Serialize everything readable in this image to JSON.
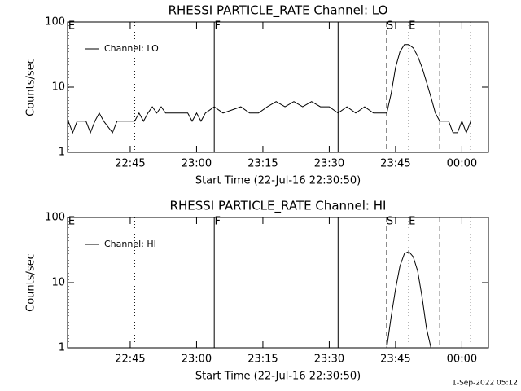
{
  "chart_data": [
    {
      "type": "line",
      "title": "RHESSI PARTICLE_RATE Channel: LO",
      "x_label": "Start Time (22-Jul-16 22:30:50)",
      "y_label": "Counts/sec",
      "log_scale": true,
      "ylim": [
        1,
        100
      ],
      "yticks": [
        1,
        10,
        100
      ],
      "xlim": [
        "22:30:50",
        "00:06"
      ],
      "xticks": [
        "22:45",
        "23:00",
        "23:15",
        "23:30",
        "23:45",
        "00:00"
      ],
      "x": [
        "22:31",
        "22:32",
        "22:33",
        "22:35",
        "22:36",
        "22:37",
        "22:38",
        "22:39",
        "22:41",
        "22:42",
        "22:46",
        "22:47",
        "22:48",
        "22:49",
        "22:50",
        "22:51",
        "22:52",
        "22:53",
        "22:58",
        "22:59",
        "23:00",
        "23:01",
        "23:02",
        "23:04",
        "23:06",
        "23:10",
        "23:12",
        "23:14",
        "23:16",
        "23:18",
        "23:20",
        "23:22",
        "23:24",
        "23:26",
        "23:28",
        "23:30",
        "23:32",
        "23:34",
        "23:36",
        "23:38",
        "23:40",
        "23:43",
        "23:44",
        "23:45",
        "23:46",
        "23:47",
        "23:48",
        "23:49",
        "23:50",
        "23:51",
        "23:52",
        "23:53",
        "23:54",
        "23:55",
        "23:56",
        "23:57",
        "23:58",
        "23:59",
        "00:00",
        "00:01",
        "00:02"
      ],
      "series": [
        {
          "name": "Channel: LO",
          "color": "#000000",
          "values": [
            3,
            2,
            3,
            3,
            2,
            3,
            4,
            3,
            2,
            3,
            3,
            4,
            3,
            4,
            5,
            4,
            5,
            4,
            4,
            3,
            4,
            3,
            4,
            5,
            4,
            5,
            4,
            4,
            5,
            6,
            5,
            6,
            5,
            6,
            5,
            5,
            4,
            5,
            4,
            5,
            4,
            4,
            8,
            20,
            35,
            45,
            45,
            40,
            30,
            20,
            12,
            7,
            4,
            3,
            3,
            3,
            2,
            2,
            3,
            2,
            3
          ]
        }
      ],
      "events": [
        {
          "x": "22:30:50",
          "label": "E",
          "style": "dotted"
        },
        {
          "x": "22:46",
          "style": "dotted"
        },
        {
          "x": "23:04",
          "label": "F",
          "style": "solid"
        },
        {
          "x": "23:32",
          "style": "solid"
        },
        {
          "x": "23:43",
          "label": "S",
          "style": "dashed"
        },
        {
          "x": "23:48",
          "label": "E",
          "style": "dotted"
        },
        {
          "x": "23:55",
          "style": "dashed"
        },
        {
          "x": "00:02",
          "style": "dotted"
        }
      ]
    },
    {
      "type": "line",
      "title": "RHESSI PARTICLE_RATE Channel: HI",
      "x_label": "Start Time (22-Jul-16 22:30:50)",
      "y_label": "Counts/sec",
      "log_scale": true,
      "ylim": [
        1,
        100
      ],
      "yticks": [
        1,
        10,
        100
      ],
      "xlim": [
        "22:30:50",
        "00:06"
      ],
      "xticks": [
        "22:45",
        "23:00",
        "23:15",
        "23:30",
        "23:45",
        "00:00"
      ],
      "x": [
        "23:43",
        "23:44",
        "23:45",
        "23:46",
        "23:47",
        "23:48",
        "23:49",
        "23:50",
        "23:51",
        "23:52",
        "23:53"
      ],
      "series": [
        {
          "name": "Channel: HI",
          "color": "#000000",
          "values": [
            1,
            3,
            8,
            18,
            28,
            30,
            25,
            15,
            6,
            2,
            1
          ]
        }
      ],
      "events": [
        {
          "x": "22:30:50",
          "label": "E",
          "style": "dotted"
        },
        {
          "x": "22:46",
          "style": "dotted"
        },
        {
          "x": "23:04",
          "label": "F",
          "style": "solid"
        },
        {
          "x": "23:32",
          "style": "solid"
        },
        {
          "x": "23:43",
          "label": "S",
          "style": "dashed"
        },
        {
          "x": "23:48",
          "label": "E",
          "style": "dotted"
        },
        {
          "x": "23:55",
          "style": "dashed"
        },
        {
          "x": "00:02",
          "style": "dotted"
        }
      ]
    }
  ],
  "footer": "1-Sep-2022 05:12"
}
